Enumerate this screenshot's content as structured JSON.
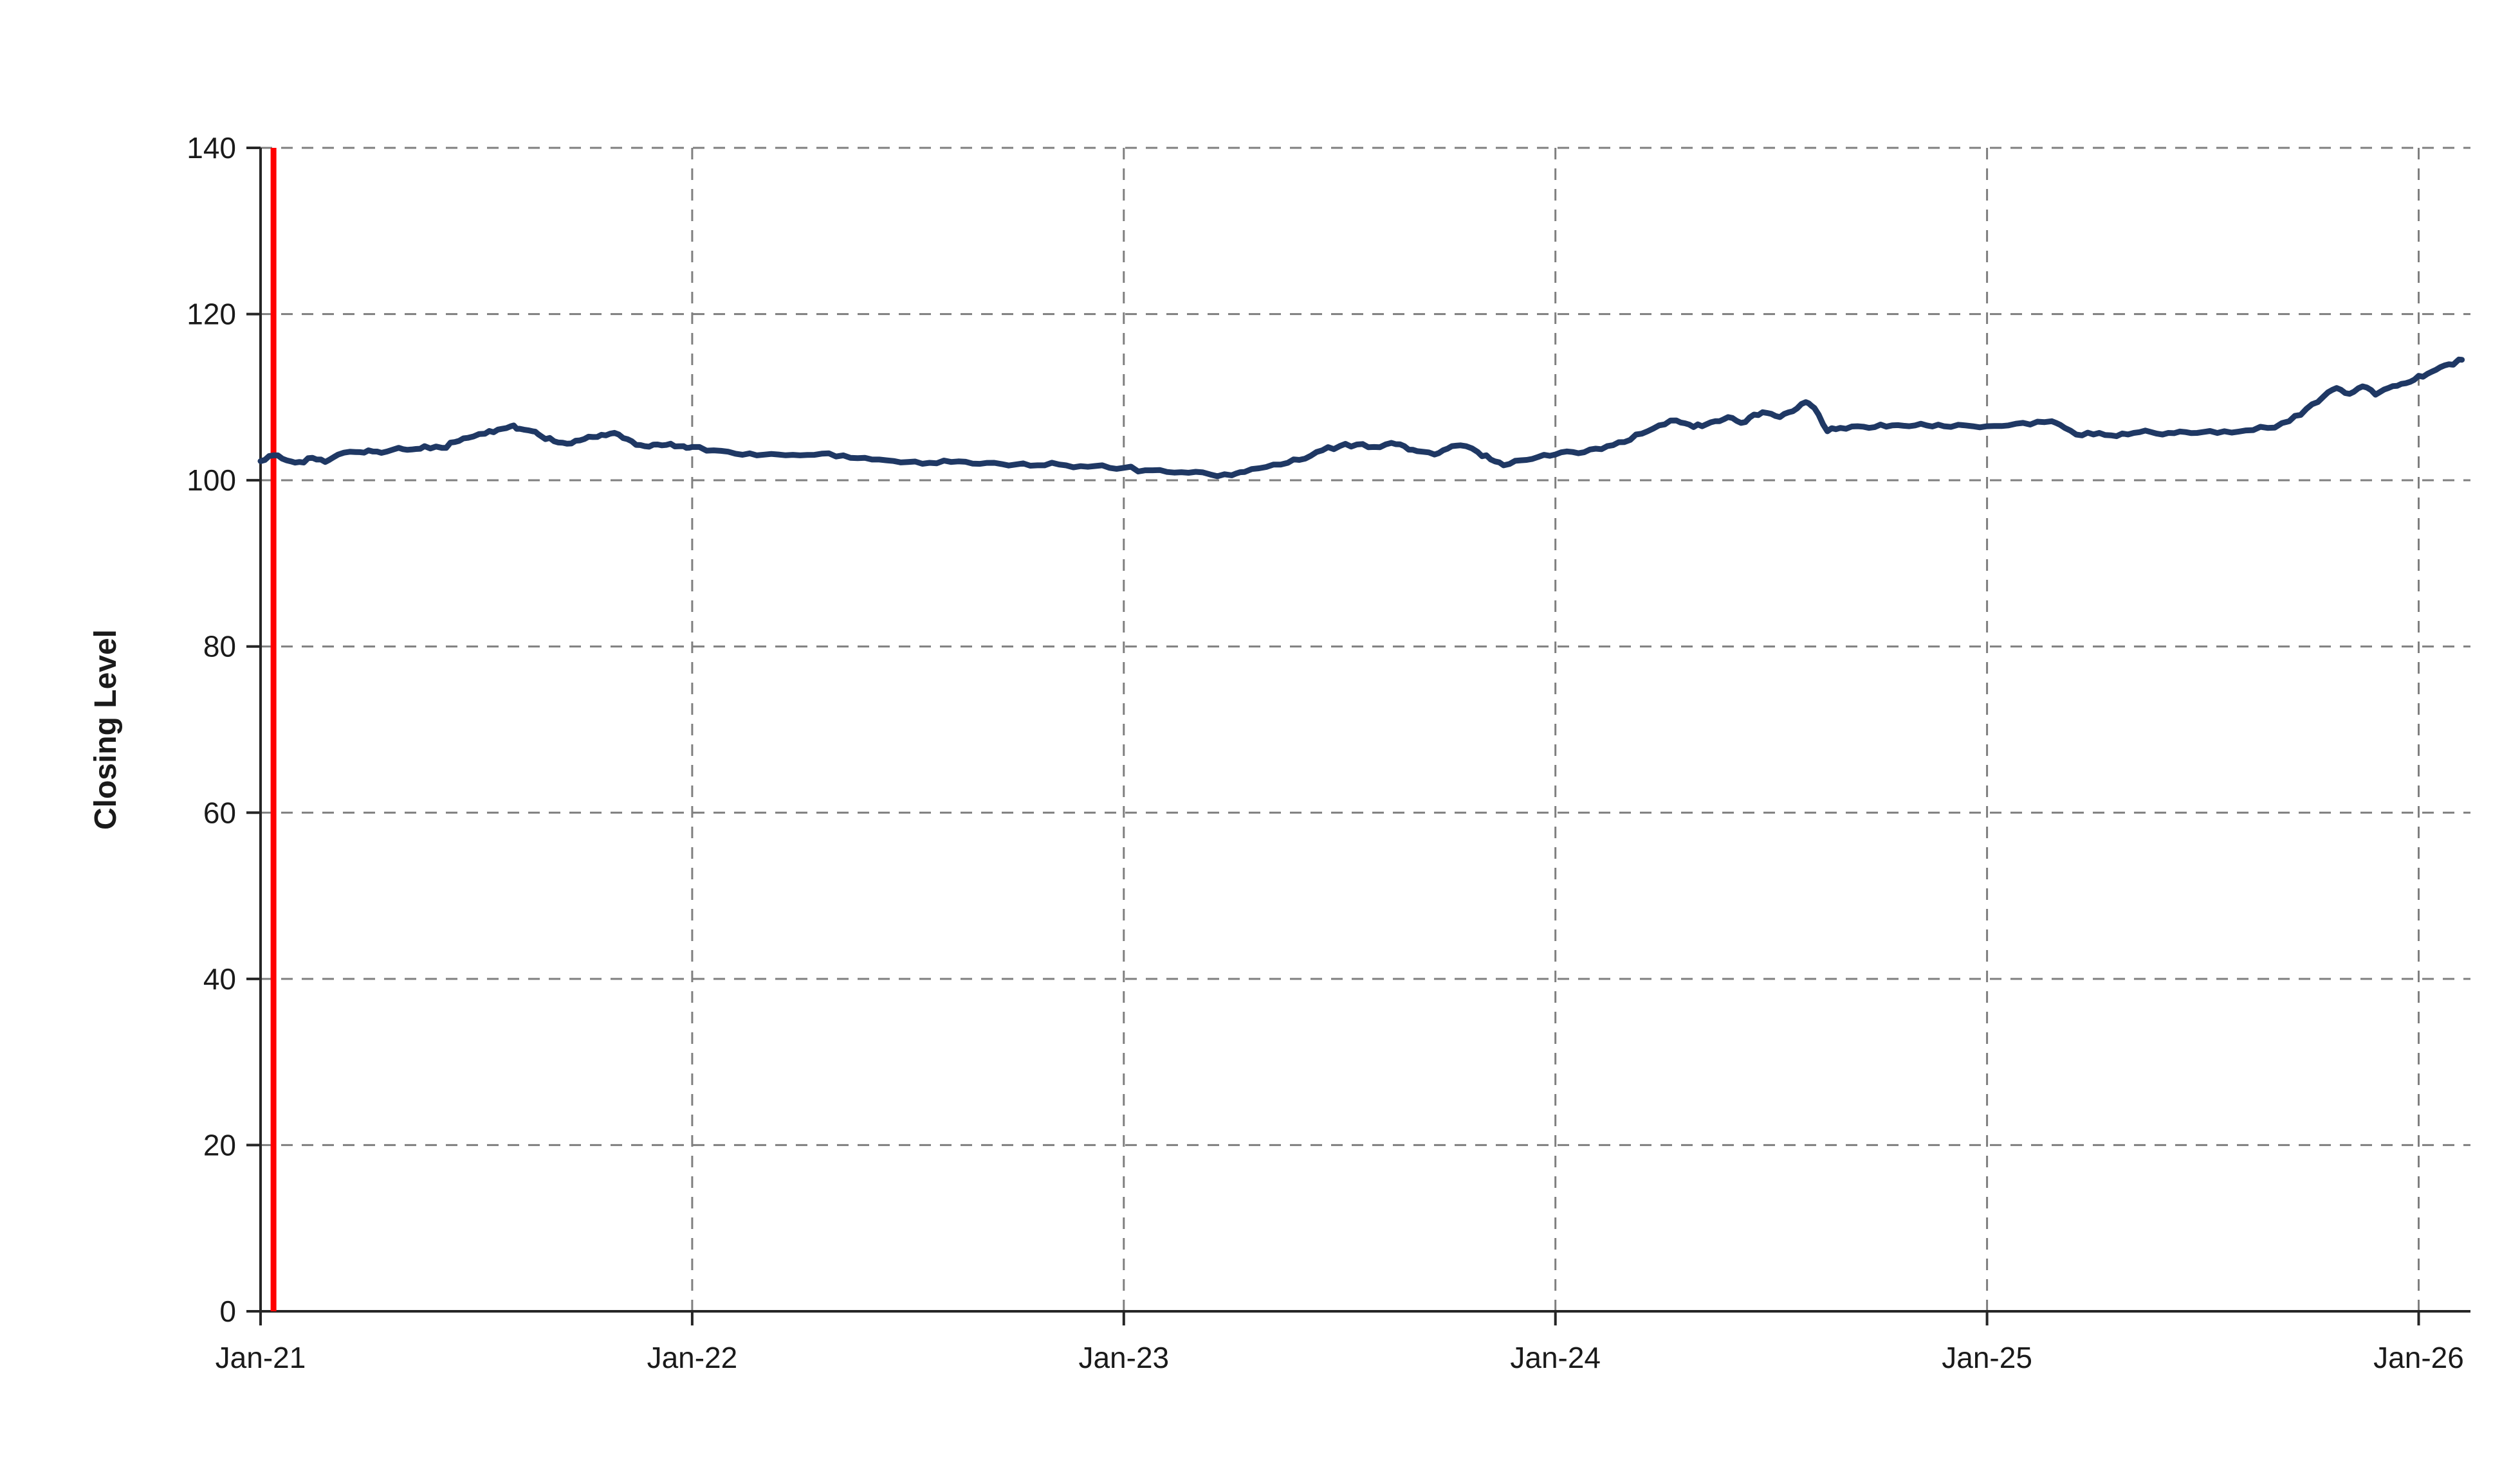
{
  "chart_data": {
    "type": "line",
    "title": "",
    "xlabel": "",
    "ylabel": "Closing Level",
    "ylim": [
      0,
      140
    ],
    "yticks": [
      0,
      20,
      40,
      60,
      80,
      100,
      120,
      140
    ],
    "xlim": [
      0,
      5.12
    ],
    "xticks": [
      {
        "t": 0,
        "label": "Jan-21"
      },
      {
        "t": 1,
        "label": "Jan-22"
      },
      {
        "t": 2,
        "label": "Jan-23"
      },
      {
        "t": 3,
        "label": "Jan-24"
      },
      {
        "t": 4,
        "label": "Jan-25"
      },
      {
        "t": 5,
        "label": "Jan-26"
      }
    ],
    "grid": "dashed",
    "grid_color": "#7f7f7f",
    "axis_color": "#262626",
    "legend": "none",
    "noise_amplitude": 0.25,
    "vline": {
      "x": 0.03,
      "color": "#ff0000",
      "name": "start-marker-line"
    },
    "series": [
      {
        "name": "Closing Level",
        "color": "#1f3864",
        "points": [
          [
            0.0,
            102.3
          ],
          [
            0.03,
            103.0
          ],
          [
            0.06,
            102.4
          ],
          [
            0.09,
            102.2
          ],
          [
            0.12,
            102.7
          ],
          [
            0.15,
            102.2
          ],
          [
            0.18,
            103.1
          ],
          [
            0.22,
            103.4
          ],
          [
            0.25,
            103.6
          ],
          [
            0.28,
            103.3
          ],
          [
            0.32,
            103.9
          ],
          [
            0.35,
            103.7
          ],
          [
            0.38,
            104.1
          ],
          [
            0.42,
            103.9
          ],
          [
            0.45,
            104.6
          ],
          [
            0.48,
            105.1
          ],
          [
            0.52,
            105.6
          ],
          [
            0.55,
            106.1
          ],
          [
            0.58,
            106.5
          ],
          [
            0.6,
            106.2
          ],
          [
            0.63,
            105.9
          ],
          [
            0.65,
            105.3
          ],
          [
            0.68,
            104.7
          ],
          [
            0.71,
            104.4
          ],
          [
            0.74,
            104.8
          ],
          [
            0.77,
            105.2
          ],
          [
            0.8,
            105.4
          ],
          [
            0.83,
            105.5
          ],
          [
            0.86,
            104.7
          ],
          [
            0.89,
            104.1
          ],
          [
            0.92,
            104.3
          ],
          [
            0.95,
            104.4
          ],
          [
            0.98,
            104.1
          ],
          [
            1.0,
            104.0
          ],
          [
            1.05,
            103.6
          ],
          [
            1.1,
            103.2
          ],
          [
            1.15,
            103.0
          ],
          [
            1.2,
            103.1
          ],
          [
            1.25,
            103.0
          ],
          [
            1.3,
            103.2
          ],
          [
            1.35,
            103.0
          ],
          [
            1.4,
            102.7
          ],
          [
            1.45,
            102.4
          ],
          [
            1.5,
            102.2
          ],
          [
            1.55,
            102.1
          ],
          [
            1.6,
            102.2
          ],
          [
            1.65,
            102.0
          ],
          [
            1.7,
            102.1
          ],
          [
            1.75,
            101.9
          ],
          [
            1.8,
            101.8
          ],
          [
            1.85,
            101.9
          ],
          [
            1.9,
            101.7
          ],
          [
            1.95,
            101.8
          ],
          [
            2.0,
            101.5
          ],
          [
            2.05,
            101.2
          ],
          [
            2.1,
            101.0
          ],
          [
            2.15,
            100.9
          ],
          [
            2.2,
            100.7
          ],
          [
            2.25,
            100.6
          ],
          [
            2.28,
            101.0
          ],
          [
            2.33,
            101.6
          ],
          [
            2.38,
            102.1
          ],
          [
            2.42,
            102.6
          ],
          [
            2.46,
            103.6
          ],
          [
            2.5,
            104.1
          ],
          [
            2.54,
            104.3
          ],
          [
            2.58,
            104.0
          ],
          [
            2.62,
            104.5
          ],
          [
            2.65,
            104.1
          ],
          [
            2.68,
            103.5
          ],
          [
            2.72,
            103.1
          ],
          [
            2.75,
            103.8
          ],
          [
            2.78,
            104.2
          ],
          [
            2.82,
            103.4
          ],
          [
            2.85,
            102.5
          ],
          [
            2.88,
            101.8
          ],
          [
            2.92,
            102.4
          ],
          [
            2.96,
            102.8
          ],
          [
            3.0,
            103.1
          ],
          [
            3.04,
            103.4
          ],
          [
            3.08,
            103.7
          ],
          [
            3.12,
            104.1
          ],
          [
            3.16,
            104.6
          ],
          [
            3.2,
            105.6
          ],
          [
            3.24,
            106.6
          ],
          [
            3.28,
            107.2
          ],
          [
            3.31,
            106.7
          ],
          [
            3.34,
            106.5
          ],
          [
            3.37,
            107.1
          ],
          [
            3.4,
            107.6
          ],
          [
            3.43,
            106.9
          ],
          [
            3.46,
            107.9
          ],
          [
            3.49,
            108.1
          ],
          [
            3.52,
            107.6
          ],
          [
            3.55,
            108.3
          ],
          [
            3.58,
            109.4
          ],
          [
            3.6,
            108.7
          ],
          [
            3.63,
            105.9
          ],
          [
            3.66,
            106.3
          ],
          [
            3.7,
            106.5
          ],
          [
            3.74,
            106.4
          ],
          [
            3.78,
            106.6
          ],
          [
            3.82,
            106.5
          ],
          [
            3.86,
            106.6
          ],
          [
            3.9,
            106.5
          ],
          [
            3.95,
            106.6
          ],
          [
            4.0,
            106.5
          ],
          [
            4.05,
            106.6
          ],
          [
            4.1,
            106.7
          ],
          [
            4.15,
            107.1
          ],
          [
            4.18,
            106.3
          ],
          [
            4.22,
            105.4
          ],
          [
            4.26,
            105.7
          ],
          [
            4.3,
            105.3
          ],
          [
            4.34,
            105.7
          ],
          [
            4.38,
            105.8
          ],
          [
            4.42,
            105.7
          ],
          [
            4.46,
            105.8
          ],
          [
            4.5,
            105.8
          ],
          [
            4.55,
            105.9
          ],
          [
            4.6,
            106.0
          ],
          [
            4.65,
            106.3
          ],
          [
            4.7,
            107.1
          ],
          [
            4.74,
            108.6
          ],
          [
            4.78,
            110.1
          ],
          [
            4.81,
            111.1
          ],
          [
            4.84,
            110.4
          ],
          [
            4.87,
            111.3
          ],
          [
            4.9,
            110.3
          ],
          [
            4.93,
            111.1
          ],
          [
            4.96,
            111.6
          ],
          [
            4.99,
            112.1
          ],
          [
            5.02,
            112.8
          ],
          [
            5.05,
            113.6
          ],
          [
            5.08,
            113.9
          ],
          [
            5.1,
            114.5
          ]
        ]
      }
    ]
  }
}
